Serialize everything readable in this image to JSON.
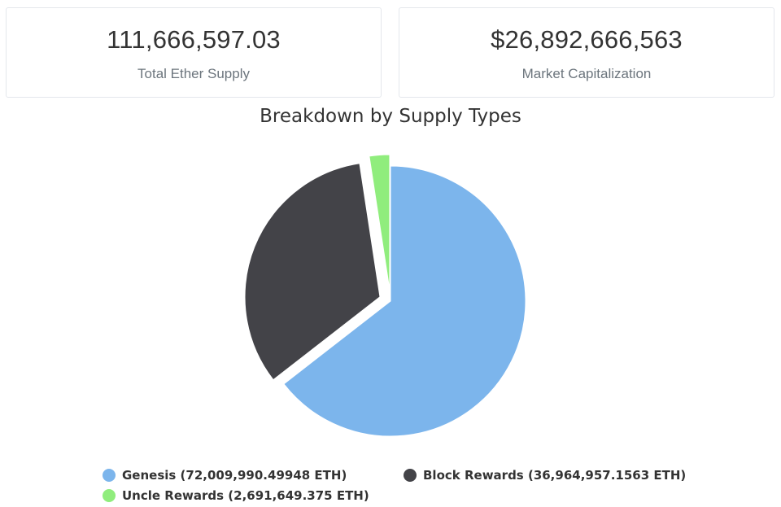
{
  "stats": {
    "total_supply": {
      "value": "111,666,597.03",
      "label": "Total Ether Supply"
    },
    "market_cap": {
      "value": "$26,892,666,563",
      "label": "Market Capitalization"
    }
  },
  "chart_data": {
    "type": "pie",
    "title": "Breakdown by Supply Types",
    "series": [
      {
        "name": "Genesis",
        "value": 72009990.49948,
        "color": "#7cb5ec",
        "legend_label": "Genesis (72,009,990.49948 ETH)"
      },
      {
        "name": "Block Rewards",
        "value": 36964957.1563,
        "color": "#434348",
        "legend_label": "Block Rewards (36,964,957.1563 ETH)"
      },
      {
        "name": "Uncle Rewards",
        "value": 2691649.375,
        "color": "#90ed7d",
        "legend_label": "Uncle Rewards (2,691,649.375 ETH)"
      }
    ],
    "legend_placement": "bottom"
  }
}
